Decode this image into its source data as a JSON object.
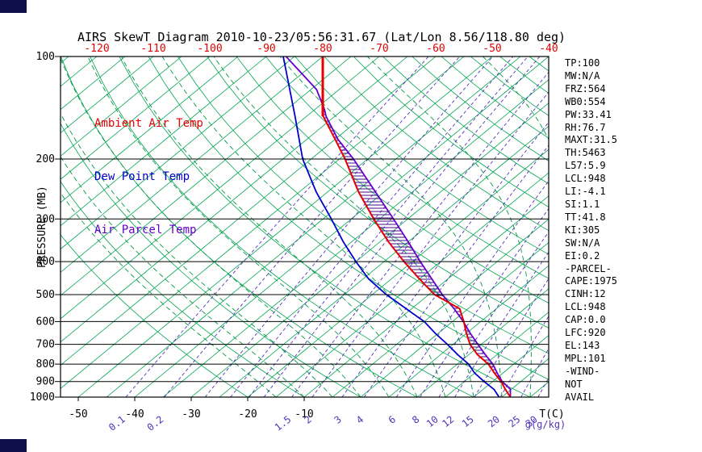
{
  "title": "AIRS SkewT Diagram 2010-10-23/05:56:31.67 (Lat/Lon 8.56/118.80 deg)",
  "legend": {
    "ambient": "Ambient Air Temp",
    "dewpoint": "Dew Point Temp",
    "parcel": "Air Parcel Temp"
  },
  "axes": {
    "pressure_label": "PRESSURE (MB)",
    "pressure_ticks": [
      100,
      200,
      300,
      400,
      500,
      600,
      700,
      800,
      900,
      1000
    ],
    "top_temp_ticks": [
      -120,
      -110,
      -100,
      -90,
      -80,
      -70,
      -60,
      -50,
      -40
    ],
    "bottom_temp_ticks": [
      -50,
      -40,
      -30,
      -20,
      -10
    ],
    "bottom_temp_label": "T(C)",
    "mixing_ratio_label": "g(g/kg)",
    "mixing_ratio_tick_labels": [
      "0.1",
      "0.2",
      "1.5",
      "2",
      "3",
      "4",
      "6",
      "8",
      "10",
      "12",
      "15",
      "20",
      "25",
      "30"
    ]
  },
  "stats": {
    "items": [
      "TP:100",
      "MW:N/A",
      "FRZ:564",
      "WB0:554",
      "PW:33.41",
      "RH:76.7",
      "MAXT:31.5",
      "TH:5463",
      "L57:5.9",
      "LCL:948",
      "LI:-4.1",
      "SI:1.1",
      "TT:41.8",
      "KI:305",
      "SW:N/A",
      "EI:0.2",
      "-PARCEL-",
      "CAPE:1975",
      "CINH:12",
      "LCL:948",
      "CAP:0.0",
      "LFC:920",
      "EL:143",
      "MPL:101",
      "-WIND-",
      "NOT",
      "AVAIL"
    ]
  },
  "colors": {
    "ambient": "#e60000",
    "dewpoint": "#0000cc",
    "parcel": "#6600cc",
    "isotherm": "#00a651",
    "moist_adiabat": "#009944",
    "mixing_ratio": "#5533bb",
    "hatch": "#440a8c",
    "axis": "#000000",
    "top_labels": "#e60000"
  },
  "chart_data": {
    "type": "line",
    "title": "AIRS SkewT Diagram 2010-10-23/05:56:31.67 (Lat/Lon 8.56/118.80 deg)",
    "x_axis": {
      "label": "Temperature (C)",
      "skewed": true,
      "bottom_range_c": [
        -53,
        33
      ],
      "top_range_c": [
        -126,
        -40
      ]
    },
    "y_axis": {
      "label": "PRESSURE (MB)",
      "scale": "log",
      "range_mb": [
        100,
        1000
      ]
    },
    "legend_position": "top-left-inside",
    "grid": "skewt-background",
    "series": [
      {
        "name": "Ambient Air Temp",
        "color_key": "ambient",
        "points_p_T": [
          [
            1000,
            26.5
          ],
          [
            950,
            24
          ],
          [
            900,
            21.5
          ],
          [
            850,
            18.5
          ],
          [
            800,
            15.5
          ],
          [
            750,
            11.5
          ],
          [
            700,
            8
          ],
          [
            650,
            5
          ],
          [
            600,
            2
          ],
          [
            550,
            -1.5
          ],
          [
            500,
            -9
          ],
          [
            450,
            -15
          ],
          [
            400,
            -21.5
          ],
          [
            350,
            -28.5
          ],
          [
            300,
            -36
          ],
          [
            250,
            -44.5
          ],
          [
            200,
            -54
          ],
          [
            175,
            -60
          ],
          [
            150,
            -67
          ],
          [
            100,
            -80
          ]
        ]
      },
      {
        "name": "Dew Point Temp",
        "color_key": "dewpoint",
        "points_p_T": [
          [
            1000,
            24.5
          ],
          [
            950,
            22
          ],
          [
            900,
            18.5
          ],
          [
            850,
            15
          ],
          [
            800,
            12
          ],
          [
            750,
            8
          ],
          [
            700,
            4
          ],
          [
            650,
            -0.5
          ],
          [
            600,
            -5
          ],
          [
            550,
            -11
          ],
          [
            500,
            -17.5
          ],
          [
            450,
            -24
          ],
          [
            400,
            -30
          ],
          [
            350,
            -36.5
          ],
          [
            300,
            -43.5
          ],
          [
            250,
            -52
          ],
          [
            200,
            -61.5
          ],
          [
            150,
            -72
          ],
          [
            100,
            -87
          ]
        ]
      },
      {
        "name": "Air Parcel Temp",
        "color_key": "parcel",
        "points_p_T": [
          [
            1000,
            26.5
          ],
          [
            948,
            24.8
          ],
          [
            900,
            21.7
          ],
          [
            850,
            19
          ],
          [
            800,
            16.3
          ],
          [
            750,
            12.9
          ],
          [
            700,
            9.4
          ],
          [
            650,
            5.7
          ],
          [
            600,
            1.9
          ],
          [
            550,
            -2.5
          ],
          [
            500,
            -7.6
          ],
          [
            450,
            -12.8
          ],
          [
            400,
            -18.6
          ],
          [
            350,
            -25
          ],
          [
            300,
            -32.5
          ],
          [
            250,
            -41.5
          ],
          [
            200,
            -52.5
          ],
          [
            175,
            -59.5
          ],
          [
            150,
            -66.5
          ],
          [
            143,
            -68.3
          ],
          [
            125,
            -74
          ],
          [
            100,
            -86.5
          ]
        ]
      }
    ],
    "cape_hatch": {
      "from_mb": 920,
      "to_mb": 143,
      "between": [
        "Ambient Air Temp",
        "Air Parcel Temp"
      ]
    },
    "background": {
      "isotherms_c": {
        "min": -125,
        "max": 30,
        "step": 5
      },
      "dry_adiabats_c": {
        "min": -20,
        "max": 180,
        "step": 10
      },
      "moist_adiabats_c": {
        "min": -15,
        "max": 40,
        "step": 5
      },
      "mixing_ratios_g_kg": [
        0.1,
        0.2,
        0.4,
        0.6,
        0.8,
        1,
        1.5,
        2,
        3,
        4,
        6,
        8,
        10,
        12,
        15,
        20,
        25,
        30
      ]
    }
  }
}
